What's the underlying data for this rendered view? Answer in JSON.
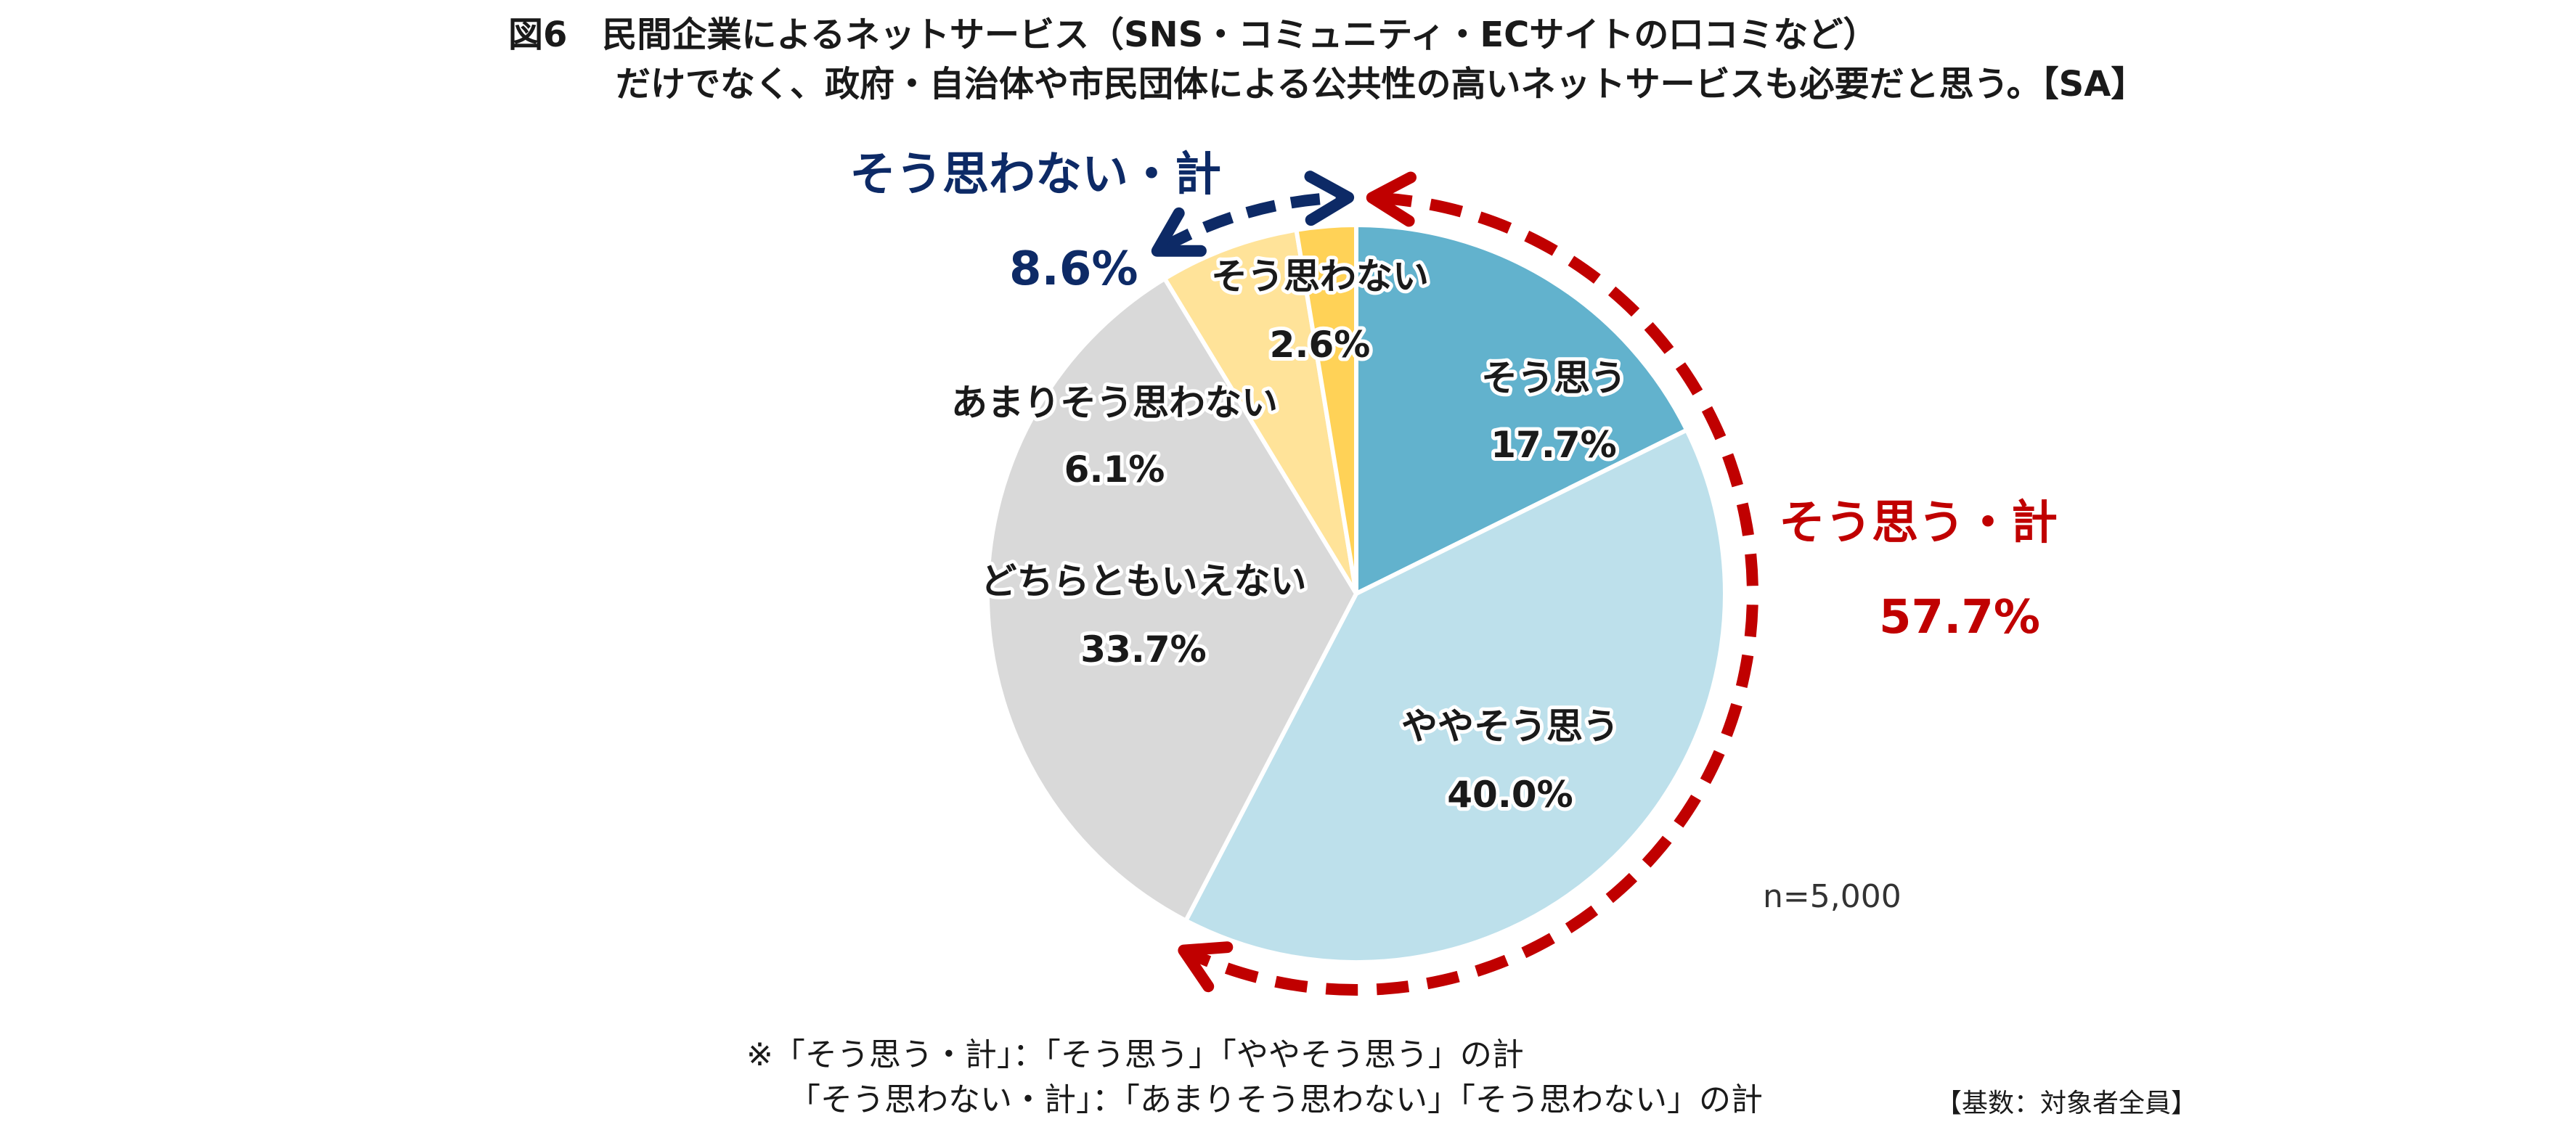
{
  "chart_data": {
    "type": "pie",
    "title_line1": "図6　民間企業によるネットサービス（SNS・コミュニティ・ECサイトの口コミなど）",
    "title_line2": "だけでなく、政府・自治体や市民団体による公共性の高いネットサービスも必要だと思う。【SA】",
    "unit": "%",
    "slices": [
      {
        "name": "そう思う",
        "value": 17.7,
        "label": "17.7%",
        "color": "#62b2cd"
      },
      {
        "name": "ややそう思う",
        "value": 40.0,
        "label": "40.0%",
        "color": "#bde0eb"
      },
      {
        "name": "どちらともいえない",
        "value": 33.7,
        "label": "33.7%",
        "color": "#d9d9d9"
      },
      {
        "name": "あまりそう思わない",
        "value": 6.1,
        "label": "6.1%",
        "color": "#ffe399"
      },
      {
        "name": "そう思わない",
        "value": 2.6,
        "label": "2.6%",
        "color": "#ffd257"
      }
    ],
    "start_angle": "12 o'clock",
    "direction": "clockwise",
    "agree_total": {
      "label": "そう思う・計",
      "value": 57.7,
      "value_label": "57.7%",
      "color": "#c00000"
    },
    "disagree_total": {
      "label": "そう思わない・計",
      "value": 8.6,
      "value_label": "8.6%",
      "color": "#0d2a66"
    },
    "sample_size": "n=5,000",
    "notes": [
      "※「そう思う・計」：「そう思う」「ややそう思う」の計",
      "「そう思わない・計」：「あまりそう思わない」「そう思わない」の計"
    ],
    "base": "【基数：対象者全員】"
  }
}
